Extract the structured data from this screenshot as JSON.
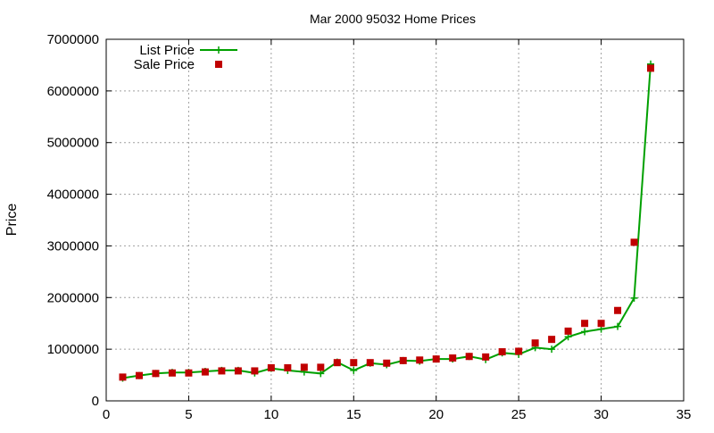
{
  "chart_data": {
    "type": "line",
    "title": "Mar 2000 95032 Home Prices",
    "xlabel": "",
    "ylabel": "Price",
    "xlim": [
      0,
      35
    ],
    "ylim": [
      0,
      7000000
    ],
    "xticks": [
      0,
      5,
      10,
      15,
      20,
      25,
      30,
      35
    ],
    "yticks": [
      0,
      1000000,
      2000000,
      3000000,
      4000000,
      5000000,
      6000000,
      7000000
    ],
    "grid": true,
    "legend_position": "top-left",
    "series": [
      {
        "name": "List Price",
        "style": "line-with-plus-markers",
        "color": "#00a000",
        "x": [
          1,
          2,
          3,
          4,
          5,
          6,
          7,
          8,
          9,
          10,
          11,
          12,
          13,
          14,
          15,
          16,
          17,
          18,
          19,
          20,
          21,
          22,
          23,
          24,
          25,
          26,
          27,
          28,
          29,
          30,
          31,
          32,
          33
        ],
        "y": [
          440000,
          490000,
          530000,
          550000,
          550000,
          570000,
          590000,
          590000,
          540000,
          630000,
          590000,
          560000,
          530000,
          750000,
          590000,
          730000,
          700000,
          780000,
          770000,
          810000,
          810000,
          860000,
          800000,
          930000,
          900000,
          1030000,
          1000000,
          1240000,
          1340000,
          1390000,
          1440000,
          1990000,
          6520000
        ]
      },
      {
        "name": "Sale Price",
        "style": "square-markers",
        "color": "#c00000",
        "x": [
          1,
          2,
          3,
          4,
          5,
          6,
          7,
          8,
          9,
          10,
          11,
          12,
          13,
          14,
          15,
          16,
          17,
          18,
          19,
          20,
          21,
          22,
          23,
          24,
          25,
          26,
          27,
          28,
          29,
          30,
          31,
          32,
          33
        ],
        "y": [
          460000,
          490000,
          530000,
          540000,
          540000,
          560000,
          580000,
          580000,
          580000,
          640000,
          640000,
          650000,
          650000,
          740000,
          740000,
          740000,
          730000,
          780000,
          790000,
          810000,
          830000,
          860000,
          850000,
          950000,
          960000,
          1120000,
          1190000,
          1350000,
          1500000,
          1500000,
          1750000,
          3070000,
          6440000
        ]
      }
    ]
  }
}
